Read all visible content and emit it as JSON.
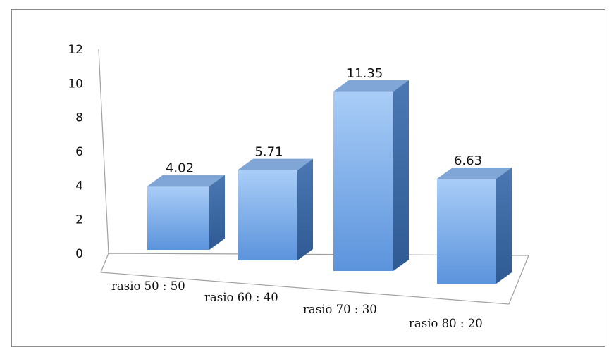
{
  "chart_data": {
    "type": "bar",
    "categories": [
      "rasio 50 : 50",
      "rasio 60 : 40",
      "rasio 70 : 30",
      "rasio 80 : 20"
    ],
    "values": [
      4.02,
      5.71,
      11.35,
      6.63
    ],
    "value_labels": [
      "4.02",
      "5.71",
      "11.35",
      "6.63"
    ],
    "yticks": [
      "0",
      "2",
      "4",
      "6",
      "8",
      "10",
      "12"
    ],
    "ylim": [
      0,
      12
    ],
    "title": "",
    "xlabel": "",
    "ylabel": "",
    "style": "3d-column",
    "grid": false,
    "legend": "none",
    "colors": {
      "front_top": "#a9cdf7",
      "front_bottom": "#5b93dc",
      "side_top": "#4b78b3",
      "side_bottom": "#2f5a93",
      "top_face": "#7fa6d6",
      "axis": "#a0a0a0"
    }
  }
}
